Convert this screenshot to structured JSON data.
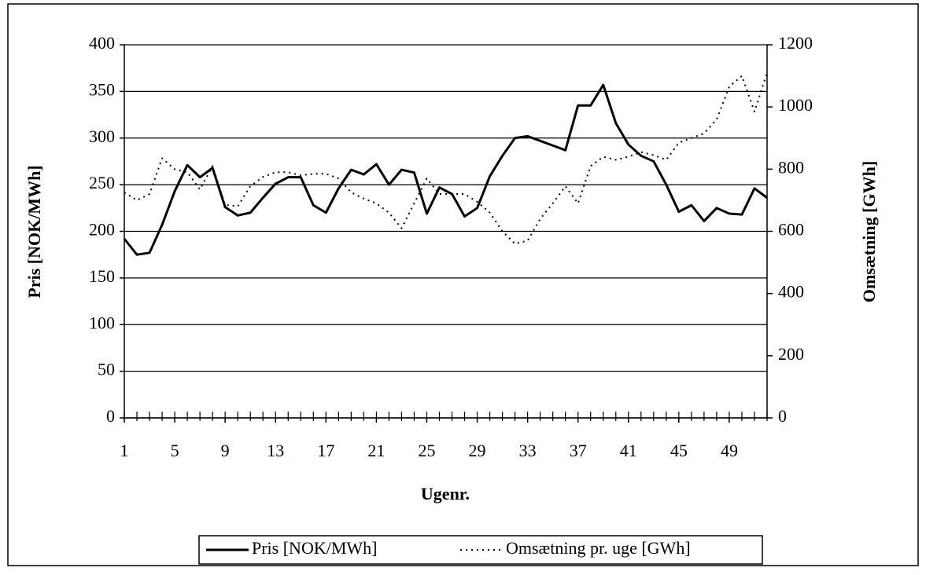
{
  "chart_data": {
    "type": "line",
    "xlabel": "Ugenr.",
    "ylabel": "Pris [NOK/MWh]",
    "y2label": "Omsætning [GWh]",
    "x": [
      1,
      2,
      3,
      4,
      5,
      6,
      7,
      8,
      9,
      10,
      11,
      12,
      13,
      14,
      15,
      16,
      17,
      18,
      19,
      20,
      21,
      22,
      23,
      24,
      25,
      26,
      27,
      28,
      29,
      30,
      31,
      32,
      33,
      34,
      35,
      36,
      37,
      38,
      39,
      40,
      41,
      42,
      43,
      44,
      45,
      46,
      47,
      48,
      49,
      50,
      51,
      52
    ],
    "xlim": [
      1,
      52
    ],
    "xticks": [
      1,
      5,
      9,
      13,
      17,
      21,
      25,
      29,
      33,
      37,
      41,
      45,
      49
    ],
    "ylim": [
      0,
      400
    ],
    "yticks": [
      0,
      50,
      100,
      150,
      200,
      250,
      300,
      350,
      400
    ],
    "y2lim": [
      0,
      1200
    ],
    "y2ticks": [
      0,
      200,
      400,
      600,
      800,
      1000,
      1200
    ],
    "grid": true,
    "legend": "bottom",
    "series": [
      {
        "name": "Pris [NOK/MWh]",
        "color": "#000000",
        "style": "solid",
        "values": [
          192,
          175,
          177,
          207,
          243,
          271,
          258,
          268,
          226,
          217,
          220,
          236,
          251,
          258,
          258,
          228,
          220,
          246,
          266,
          261,
          272,
          250,
          266,
          263,
          219,
          247,
          240,
          216,
          225,
          259,
          281,
          300,
          302,
          297,
          292,
          287,
          335,
          335,
          357,
          316,
          293,
          281,
          275,
          250,
          221,
          228,
          211,
          225,
          219,
          218,
          246,
          236
        ]
      },
      {
        "name": "Omsætning pr. uge [GWh]",
        "color": "#000000",
        "style": "dotted",
        "axis": "y2",
        "values": [
          725,
          700,
          720,
          835,
          800,
          790,
          735,
          810,
          685,
          680,
          745,
          775,
          790,
          790,
          780,
          785,
          785,
          770,
          725,
          705,
          690,
          660,
          610,
          690,
          770,
          720,
          720,
          720,
          695,
          660,
          600,
          560,
          570,
          640,
          690,
          745,
          690,
          810,
          840,
          830,
          840,
          855,
          845,
          830,
          885,
          900,
          915,
          960,
          1065,
          1100,
          985,
          1110
        ]
      }
    ]
  }
}
